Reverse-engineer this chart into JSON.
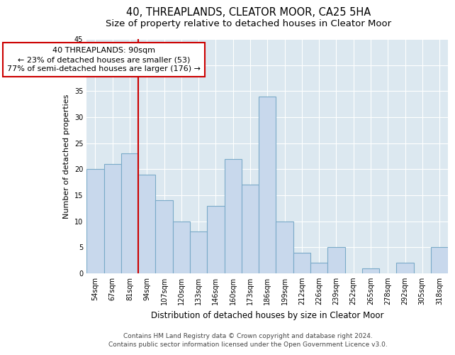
{
  "title": "40, THREAPLANDS, CLEATOR MOOR, CA25 5HA",
  "subtitle": "Size of property relative to detached houses in Cleator Moor",
  "xlabel": "Distribution of detached houses by size in Cleator Moor",
  "ylabel": "Number of detached properties",
  "categories": [
    "54sqm",
    "67sqm",
    "81sqm",
    "94sqm",
    "107sqm",
    "120sqm",
    "133sqm",
    "146sqm",
    "160sqm",
    "173sqm",
    "186sqm",
    "199sqm",
    "212sqm",
    "226sqm",
    "239sqm",
    "252sqm",
    "265sqm",
    "278sqm",
    "292sqm",
    "305sqm",
    "318sqm"
  ],
  "values": [
    20,
    21,
    23,
    19,
    14,
    10,
    8,
    13,
    22,
    17,
    34,
    10,
    4,
    2,
    5,
    0,
    1,
    0,
    2,
    0,
    5
  ],
  "bar_color": "#c8d8ec",
  "bar_edge_color": "#7aaac8",
  "vline_x_index": 2.5,
  "vline_color": "#cc0000",
  "annotation_line1": "40 THREAPLANDS: 90sqm",
  "annotation_line2": "← 23% of detached houses are smaller (53)",
  "annotation_line3": "77% of semi-detached houses are larger (176) →",
  "annotation_box_color": "#ffffff",
  "annotation_box_edge": "#cc0000",
  "ylim": [
    0,
    45
  ],
  "yticks": [
    0,
    5,
    10,
    15,
    20,
    25,
    30,
    35,
    40,
    45
  ],
  "fig_bg_color": "#ffffff",
  "plot_bg_color": "#dce8f0",
  "grid_color": "#ffffff",
  "footer_line1": "Contains HM Land Registry data © Crown copyright and database right 2024.",
  "footer_line2": "Contains public sector information licensed under the Open Government Licence v3.0.",
  "title_fontsize": 10.5,
  "subtitle_fontsize": 9.5,
  "tick_fontsize": 7,
  "ylabel_fontsize": 8,
  "xlabel_fontsize": 8.5,
  "footer_fontsize": 6.5,
  "ann_fontsize": 8
}
